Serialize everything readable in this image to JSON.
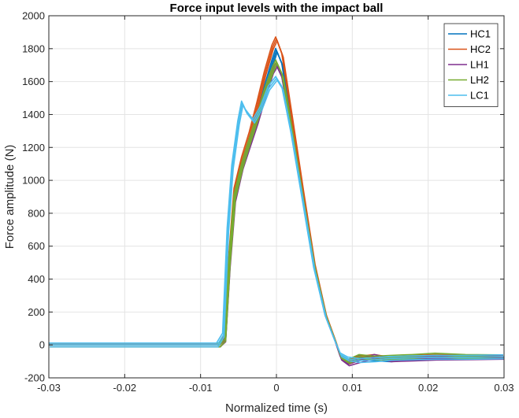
{
  "chart_data": {
    "type": "line",
    "title": "Force input levels with the impact ball",
    "xlabel": "Normalized time (s)",
    "ylabel": "Force amplitude (N)",
    "xlim": [
      -0.03,
      0.03
    ],
    "ylim": [
      -200,
      2000
    ],
    "x_ticks": [
      -0.03,
      -0.02,
      -0.01,
      0,
      0.01,
      0.02,
      0.03
    ],
    "x_tick_labels": [
      "-0.03",
      "-0.02",
      "-0.01",
      "0",
      "0.01",
      "0.02",
      "0.03"
    ],
    "y_ticks": [
      -200,
      0,
      200,
      400,
      600,
      800,
      1000,
      1200,
      1400,
      1600,
      1800,
      2000
    ],
    "y_tick_labels": [
      "-200",
      "0",
      "200",
      "400",
      "600",
      "800",
      "1000",
      "1200",
      "1400",
      "1600",
      "1800",
      "2000"
    ],
    "grid": true,
    "legend_position": "top-right",
    "series": [
      {
        "name": "HC1",
        "color": "#0072BD",
        "x": [
          -0.03,
          -0.0075,
          -0.0068,
          -0.0062,
          -0.0055,
          -0.0045,
          -0.0035,
          -0.0025,
          -0.0015,
          -0.0005,
          0,
          0.0008,
          0.002,
          0.0035,
          0.005,
          0.0065,
          0.0078,
          0.0085,
          0.0095,
          0.011,
          0.013,
          0.015,
          0.018,
          0.021,
          0.025,
          0.03
        ],
        "y": [
          0,
          0,
          40,
          500,
          920,
          1100,
          1230,
          1380,
          1560,
          1720,
          1790,
          1700,
          1350,
          900,
          480,
          180,
          20,
          -70,
          -100,
          -75,
          -85,
          -90,
          -80,
          -75,
          -75,
          -72
        ]
      },
      {
        "name": "HC2",
        "color": "#D95319",
        "x": [
          -0.03,
          -0.0075,
          -0.0068,
          -0.0062,
          -0.0055,
          -0.0045,
          -0.0035,
          -0.0025,
          -0.0015,
          -0.0005,
          0,
          0.0008,
          0.002,
          0.0035,
          0.005,
          0.0065,
          0.0078,
          0.0085,
          0.0095,
          0.011,
          0.013,
          0.015,
          0.018,
          0.021,
          0.025,
          0.03
        ],
        "y": [
          0,
          0,
          40,
          520,
          940,
          1130,
          1280,
          1460,
          1650,
          1810,
          1860,
          1760,
          1400,
          940,
          500,
          190,
          25,
          -75,
          -105,
          -80,
          -70,
          -85,
          -75,
          -70,
          -72,
          -72
        ]
      },
      {
        "name": "LH1",
        "color": "#7E2F8E",
        "x": [
          -0.03,
          -0.0075,
          -0.0068,
          -0.0062,
          -0.0055,
          -0.0045,
          -0.0035,
          -0.0025,
          -0.0015,
          -0.0005,
          0,
          0.0008,
          0.002,
          0.0035,
          0.005,
          0.0065,
          0.0078,
          0.0085,
          0.0095,
          0.011,
          0.013,
          0.015,
          0.018,
          0.021,
          0.025,
          0.03
        ],
        "y": [
          0,
          0,
          30,
          480,
          880,
          1080,
          1220,
          1360,
          1520,
          1660,
          1700,
          1620,
          1300,
          880,
          470,
          170,
          15,
          -80,
          -115,
          -95,
          -70,
          -90,
          -85,
          -80,
          -78,
          -75
        ]
      },
      {
        "name": "LH2",
        "color": "#77AC30",
        "x": [
          -0.03,
          -0.0075,
          -0.0068,
          -0.0062,
          -0.0055,
          -0.0045,
          -0.0035,
          -0.0025,
          -0.0015,
          -0.0005,
          0,
          0.0008,
          0.002,
          0.0035,
          0.005,
          0.0065,
          0.0078,
          0.0085,
          0.0095,
          0.011,
          0.013,
          0.015,
          0.018,
          0.021,
          0.025,
          0.03
        ],
        "y": [
          0,
          0,
          35,
          500,
          900,
          1090,
          1240,
          1380,
          1540,
          1670,
          1720,
          1640,
          1320,
          890,
          480,
          180,
          20,
          -70,
          -100,
          -70,
          -80,
          -75,
          -70,
          -62,
          -70,
          -72
        ]
      },
      {
        "name": "LC1",
        "color": "#4DBEEE",
        "x": [
          -0.03,
          -0.0078,
          -0.007,
          -0.0064,
          -0.0058,
          -0.005,
          -0.0045,
          -0.004,
          -0.003,
          -0.002,
          -0.001,
          0,
          0.0008,
          0.002,
          0.0035,
          0.005,
          0.0065,
          0.0078,
          0.0085,
          0.0095,
          0.011,
          0.013,
          0.015,
          0.018,
          0.021,
          0.025,
          0.03
        ],
        "y": [
          0,
          0,
          60,
          700,
          1080,
          1350,
          1470,
          1420,
          1360,
          1440,
          1560,
          1620,
          1560,
          1280,
          870,
          460,
          170,
          15,
          -60,
          -85,
          -95,
          -90,
          -82,
          -78,
          -75,
          -75,
          -72
        ]
      }
    ]
  }
}
